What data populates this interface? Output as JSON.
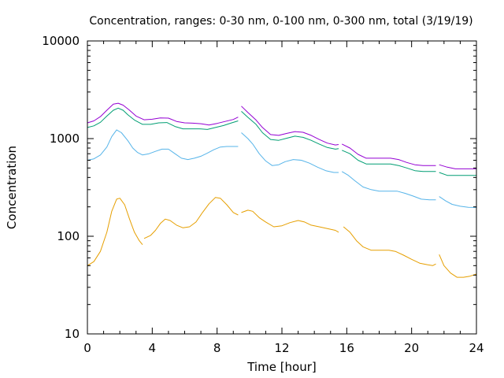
{
  "chart_data": {
    "type": "line",
    "title": "Concentration, ranges: 0-30 nm, 0-100 nm, 0-300 nm, total (3/19/19)",
    "xlabel": "Time [hour]",
    "ylabel": "Concentration",
    "xlim": [
      0,
      24
    ],
    "ylim": [
      10,
      10000
    ],
    "yscale": "log",
    "xticks": [
      0,
      4,
      8,
      12,
      16,
      20,
      24
    ],
    "xtick_labels": [
      "0",
      "4",
      "8",
      "12",
      "16",
      "20",
      "24"
    ],
    "yticks": [
      10,
      100,
      1000,
      10000
    ],
    "ytick_labels": [
      "10",
      "100",
      "1000",
      "10000"
    ],
    "grid": false,
    "legend": "none",
    "series": [
      {
        "color": "#e69f00",
        "segments": [
          [
            [
              0,
              50
            ],
            [
              0.4,
              55
            ],
            [
              0.8,
              70
            ],
            [
              1.2,
              110
            ],
            [
              1.5,
              180
            ],
            [
              1.8,
              240
            ],
            [
              2.0,
              245
            ],
            [
              2.3,
              210
            ],
            [
              2.6,
              150
            ],
            [
              2.9,
              110
            ],
            [
              3.2,
              90
            ],
            [
              3.4,
              82
            ]
          ],
          [
            [
              3.5,
              95
            ],
            [
              3.9,
              102
            ],
            [
              4.2,
              115
            ],
            [
              4.5,
              135
            ],
            [
              4.8,
              150
            ],
            [
              5.1,
              145
            ],
            [
              5.5,
              130
            ],
            [
              5.9,
              122
            ],
            [
              6.3,
              125
            ],
            [
              6.7,
              140
            ],
            [
              7.1,
              175
            ],
            [
              7.5,
              215
            ],
            [
              7.9,
              250
            ],
            [
              8.2,
              245
            ],
            [
              8.6,
              210
            ],
            [
              9.0,
              175
            ],
            [
              9.3,
              165
            ]
          ],
          [
            [
              9.5,
              175
            ],
            [
              9.9,
              185
            ],
            [
              10.2,
              180
            ],
            [
              10.6,
              155
            ],
            [
              11.0,
              140
            ],
            [
              11.5,
              125
            ],
            [
              12.0,
              128
            ],
            [
              12.5,
              138
            ],
            [
              13.0,
              145
            ],
            [
              13.4,
              140
            ],
            [
              13.8,
              130
            ],
            [
              14.3,
              125
            ],
            [
              14.8,
              120
            ],
            [
              15.3,
              115
            ],
            [
              15.5,
              110
            ]
          ],
          [
            [
              15.8,
              125
            ],
            [
              16.2,
              110
            ],
            [
              16.6,
              90
            ],
            [
              17.0,
              78
            ],
            [
              17.5,
              72
            ],
            [
              18.0,
              72
            ],
            [
              18.6,
              72
            ],
            [
              19.0,
              70
            ],
            [
              19.5,
              64
            ],
            [
              20.0,
              58
            ],
            [
              20.5,
              53
            ],
            [
              21.0,
              51
            ],
            [
              21.3,
              50
            ],
            [
              21.5,
              52
            ]
          ],
          [
            [
              21.7,
              65
            ],
            [
              22.0,
              50
            ],
            [
              22.4,
              42
            ],
            [
              22.8,
              38
            ],
            [
              23.2,
              38
            ],
            [
              23.6,
              39
            ],
            [
              24.0,
              41
            ]
          ]
        ]
      },
      {
        "color": "#56b4e9",
        "segments": [
          [
            [
              0,
              600
            ],
            [
              0.4,
              620
            ],
            [
              0.8,
              680
            ],
            [
              1.2,
              820
            ],
            [
              1.5,
              1050
            ],
            [
              1.8,
              1230
            ],
            [
              2.1,
              1150
            ],
            [
              2.5,
              950
            ],
            [
              2.8,
              800
            ],
            [
              3.1,
              720
            ],
            [
              3.4,
              680
            ],
            [
              3.8,
              700
            ],
            [
              4.2,
              740
            ],
            [
              4.6,
              780
            ],
            [
              5.0,
              780
            ],
            [
              5.4,
              700
            ],
            [
              5.8,
              630
            ],
            [
              6.2,
              610
            ],
            [
              6.6,
              630
            ],
            [
              7.0,
              660
            ],
            [
              7.4,
              710
            ],
            [
              7.8,
              770
            ],
            [
              8.2,
              820
            ],
            [
              8.6,
              830
            ],
            [
              9.0,
              830
            ],
            [
              9.3,
              830
            ]
          ],
          [
            [
              9.5,
              1150
            ],
            [
              9.9,
              1000
            ],
            [
              10.2,
              880
            ],
            [
              10.6,
              700
            ],
            [
              11.0,
              590
            ],
            [
              11.4,
              530
            ],
            [
              11.8,
              540
            ],
            [
              12.2,
              580
            ],
            [
              12.7,
              610
            ],
            [
              13.2,
              600
            ],
            [
              13.7,
              560
            ],
            [
              14.2,
              510
            ],
            [
              14.7,
              470
            ],
            [
              15.2,
              450
            ],
            [
              15.5,
              450
            ]
          ],
          [
            [
              15.7,
              460
            ],
            [
              16.1,
              420
            ],
            [
              16.5,
              370
            ],
            [
              17.0,
              320
            ],
            [
              17.5,
              300
            ],
            [
              18.0,
              290
            ],
            [
              18.6,
              290
            ],
            [
              19.1,
              290
            ],
            [
              19.6,
              275
            ],
            [
              20.1,
              258
            ],
            [
              20.6,
              240
            ],
            [
              21.1,
              236
            ],
            [
              21.5,
              236
            ]
          ],
          [
            [
              21.7,
              255
            ],
            [
              22.1,
              230
            ],
            [
              22.5,
              212
            ],
            [
              23.0,
              203
            ],
            [
              23.5,
              198
            ],
            [
              24.0,
              197
            ]
          ]
        ]
      },
      {
        "color": "#009e73",
        "segments": [
          [
            [
              0,
              1300
            ],
            [
              0.4,
              1350
            ],
            [
              0.8,
              1470
            ],
            [
              1.2,
              1700
            ],
            [
              1.6,
              1950
            ],
            [
              1.9,
              2050
            ],
            [
              2.2,
              1950
            ],
            [
              2.5,
              1750
            ],
            [
              2.9,
              1550
            ],
            [
              3.4,
              1400
            ],
            [
              3.9,
              1400
            ],
            [
              4.4,
              1450
            ],
            [
              4.9,
              1460
            ],
            [
              5.4,
              1330
            ],
            [
              5.9,
              1260
            ],
            [
              6.4,
              1260
            ],
            [
              6.9,
              1260
            ],
            [
              7.4,
              1240
            ],
            [
              7.9,
              1300
            ],
            [
              8.4,
              1360
            ],
            [
              8.9,
              1450
            ],
            [
              9.3,
              1520
            ]
          ],
          [
            [
              9.5,
              1900
            ],
            [
              9.9,
              1650
            ],
            [
              10.4,
              1400
            ],
            [
              10.8,
              1150
            ],
            [
              11.3,
              980
            ],
            [
              11.8,
              960
            ],
            [
              12.3,
              1010
            ],
            [
              12.8,
              1060
            ],
            [
              13.3,
              1030
            ],
            [
              13.8,
              960
            ],
            [
              14.3,
              880
            ],
            [
              14.8,
              810
            ],
            [
              15.3,
              780
            ],
            [
              15.5,
              790
            ]
          ],
          [
            [
              15.7,
              760
            ],
            [
              16.2,
              700
            ],
            [
              16.7,
              600
            ],
            [
              17.2,
              550
            ],
            [
              17.7,
              550
            ],
            [
              18.2,
              550
            ],
            [
              18.7,
              550
            ],
            [
              19.2,
              530
            ],
            [
              19.7,
              500
            ],
            [
              20.2,
              470
            ],
            [
              20.7,
              460
            ],
            [
              21.2,
              460
            ],
            [
              21.5,
              460
            ]
          ],
          [
            [
              21.7,
              450
            ],
            [
              22.2,
              420
            ],
            [
              22.7,
              420
            ],
            [
              23.2,
              420
            ],
            [
              23.7,
              420
            ],
            [
              24.0,
              420
            ]
          ]
        ]
      },
      {
        "color": "#9400d3",
        "segments": [
          [
            [
              0,
              1450
            ],
            [
              0.4,
              1520
            ],
            [
              0.8,
              1680
            ],
            [
              1.2,
              1950
            ],
            [
              1.6,
              2250
            ],
            [
              1.9,
              2300
            ],
            [
              2.2,
              2200
            ],
            [
              2.6,
              1950
            ],
            [
              3.0,
              1700
            ],
            [
              3.5,
              1560
            ],
            [
              4.0,
              1580
            ],
            [
              4.5,
              1630
            ],
            [
              5.0,
              1620
            ],
            [
              5.5,
              1500
            ],
            [
              6.0,
              1450
            ],
            [
              6.5,
              1440
            ],
            [
              7.0,
              1420
            ],
            [
              7.5,
              1380
            ],
            [
              8.0,
              1430
            ],
            [
              8.5,
              1500
            ],
            [
              9.0,
              1570
            ],
            [
              9.3,
              1660
            ]
          ],
          [
            [
              9.5,
              2150
            ],
            [
              9.9,
              1850
            ],
            [
              10.4,
              1550
            ],
            [
              10.8,
              1300
            ],
            [
              11.3,
              1100
            ],
            [
              11.8,
              1080
            ],
            [
              12.3,
              1130
            ],
            [
              12.8,
              1180
            ],
            [
              13.3,
              1160
            ],
            [
              13.8,
              1080
            ],
            [
              14.3,
              980
            ],
            [
              14.8,
              900
            ],
            [
              15.3,
              860
            ],
            [
              15.5,
              870
            ]
          ],
          [
            [
              15.7,
              880
            ],
            [
              16.2,
              800
            ],
            [
              16.7,
              690
            ],
            [
              17.2,
              630
            ],
            [
              17.7,
              630
            ],
            [
              18.2,
              630
            ],
            [
              18.7,
              630
            ],
            [
              19.2,
              610
            ],
            [
              19.7,
              570
            ],
            [
              20.2,
              540
            ],
            [
              20.7,
              530
            ],
            [
              21.2,
              530
            ],
            [
              21.5,
              530
            ]
          ],
          [
            [
              21.7,
              540
            ],
            [
              22.2,
              510
            ],
            [
              22.7,
              490
            ],
            [
              23.2,
              490
            ],
            [
              23.7,
              490
            ],
            [
              24.0,
              490
            ]
          ]
        ]
      }
    ]
  }
}
